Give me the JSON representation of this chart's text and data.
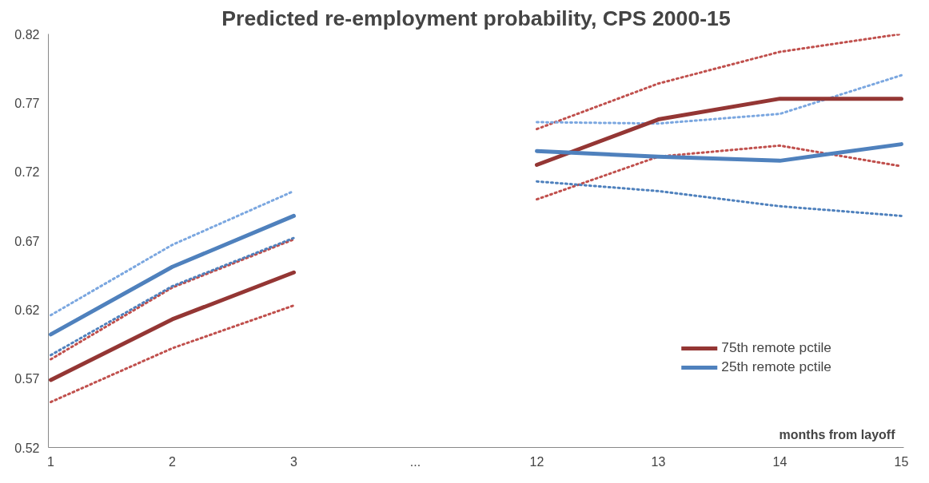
{
  "chart_data": {
    "type": "line",
    "title": "Predicted re-employment probability, CPS 2000-15",
    "xlabel": "months from layoff",
    "categories": [
      "1",
      "2",
      "3",
      "...",
      "12",
      "13",
      "14",
      "15"
    ],
    "series": [
      {
        "name": "75th remote pctile",
        "color": "#943634",
        "line_style": "solid",
        "values": [
          0.569,
          0.613,
          0.647,
          null,
          0.725,
          0.758,
          0.773,
          0.773
        ]
      },
      {
        "name": "25th remote pctile",
        "color": "#4f81bd",
        "line_style": "solid",
        "values": [
          0.602,
          0.651,
          0.688,
          null,
          0.735,
          0.731,
          0.728,
          0.74
        ]
      },
      {
        "color": "#c0504d",
        "line_style": "dotted",
        "values": [
          0.584,
          0.636,
          0.671,
          null,
          0.751,
          0.784,
          0.807,
          0.82
        ]
      },
      {
        "color": "#c0504d",
        "line_style": "dotted",
        "values": [
          0.553,
          0.592,
          0.623,
          null,
          0.7,
          0.731,
          0.739,
          0.724
        ]
      },
      {
        "color": "#7ba7e0",
        "line_style": "dotted",
        "values": [
          0.616,
          0.667,
          0.706,
          null,
          0.756,
          0.755,
          0.762,
          0.79
        ]
      },
      {
        "color": "#4f81bd",
        "line_style": "dotted",
        "values": [
          0.587,
          0.637,
          0.672,
          null,
          0.713,
          0.706,
          0.695,
          0.688
        ]
      }
    ],
    "ylim": [
      0.52,
      0.82
    ],
    "yticks": [
      0.52,
      0.57,
      0.62,
      0.67,
      0.72,
      0.77,
      0.82
    ],
    "grid": false,
    "legend": "bottom right",
    "marker": "none"
  }
}
